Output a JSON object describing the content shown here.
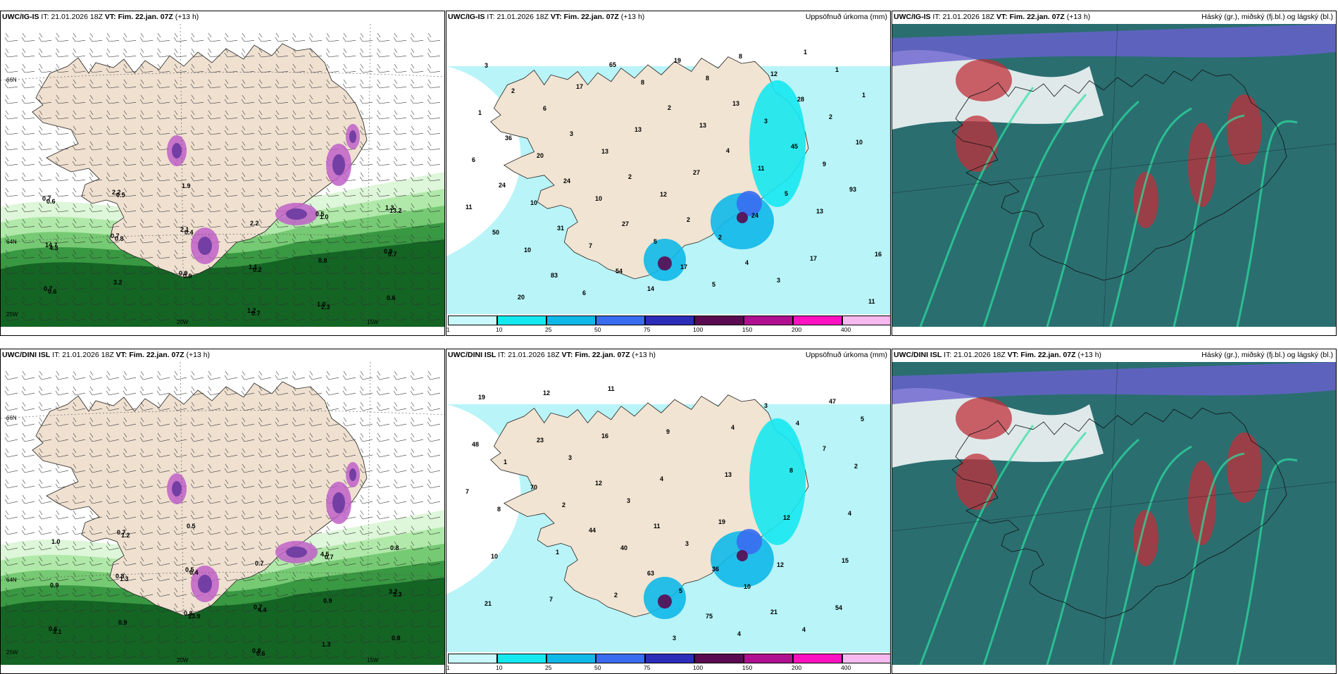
{
  "rows": [
    {
      "wind": {
        "model": "UWC/IG-IS",
        "it_label": "IT:",
        "it": "21.01.2026 18Z",
        "vt_label": "VT:",
        "vt": "Fim. 22.jan. 07Z",
        "lead": "(+13 h)"
      },
      "precip": {
        "model": "UWC/IG-IS",
        "it_label": "IT:",
        "it": "21.01.2026 18Z",
        "vt_label": "VT:",
        "vt": "Fim. 22.jan. 07Z",
        "lead": "(+13 h)",
        "right": "Uppsöfnuð úrkoma (mm)"
      },
      "cloud": {
        "model": "UWC/IG-IS",
        "it_label": "IT:",
        "it": "21.01.2026 18Z",
        "vt_label": "VT:",
        "vt": "Fim. 22.jan. 07Z",
        "lead": "(+13 h)",
        "right": "Háský (gr.), miðský (fj.bl.) og lágský (bl.)"
      }
    },
    {
      "wind": {
        "model": "UWC/DINI ISL",
        "it_label": "IT:",
        "it": "21.01.2026 18Z",
        "vt_label": "VT:",
        "vt": "Fim. 22.jan. 07Z",
        "lead": "(+13 h)"
      },
      "precip": {
        "model": "UWC/DINI ISL",
        "it_label": "IT:",
        "it": "21.01.2026 18Z",
        "vt_label": "VT:",
        "vt": "Fim. 22.jan. 07Z",
        "lead": "(+13 h)",
        "right": "Uppsöfnuð úrkoma (mm)"
      },
      "cloud": {
        "model": "UWC/DINI ISL",
        "it_label": "IT:",
        "it": "21.01.2026 18Z",
        "vt_label": "VT:",
        "vt": "Fim. 22.jan. 07Z",
        "lead": "(+13 h)",
        "right": "Háský (gr.), miðský (fj.bl.) og lágský (bl.)"
      }
    }
  ],
  "axis_labels": {
    "lat_66": "66N",
    "lat_64": "64N",
    "lon_25": "25W",
    "lon_20": "20W",
    "lon_15": "15W"
  },
  "colorbar": {
    "ticks": [
      "1",
      "10",
      "25",
      "50",
      "75",
      "100",
      "150",
      "200",
      "400"
    ],
    "colors": [
      "#c8f8fc",
      "#16e8f0",
      "#10b8e8",
      "#3a6cf0",
      "#2c2cb8",
      "#5a0a50",
      "#b01090",
      "#ff10c0",
      "#f8b8f0"
    ]
  },
  "precip_labels": {
    "top": [
      "3",
      "6",
      "13",
      "12",
      "2",
      "3",
      "1",
      "1",
      "20",
      "10",
      "5",
      "5",
      "12",
      "2",
      "6",
      "10",
      "7",
      "14",
      "8",
      "3",
      "9",
      "11",
      "10",
      "6",
      "8",
      "13",
      "11",
      "13",
      "16",
      "20",
      "17",
      "13",
      "27",
      "24",
      "17",
      "11",
      "2",
      "3",
      "2",
      "2",
      "4",
      "1",
      "1",
      "36",
      "24",
      "27",
      "17",
      "8",
      "28",
      "10",
      "24",
      "31",
      "54",
      "19",
      "13",
      "45",
      "93",
      "50",
      "83",
      "65",
      "2",
      "4",
      "5"
    ],
    "bottom": [
      "3",
      "3",
      "3",
      "10",
      "4",
      "5",
      "1",
      "2",
      "40",
      "5",
      "4",
      "4",
      "2",
      "8",
      "1",
      "2",
      "3",
      "4",
      "8",
      "4",
      "10",
      "7",
      "11",
      "9",
      "13",
      "12",
      "15",
      "21",
      "12",
      "16",
      "4",
      "19",
      "12",
      "54",
      "19",
      "23",
      "12",
      "11",
      "36",
      "21",
      "47",
      "48",
      "70",
      "44",
      "63",
      "75",
      "3",
      "7",
      "7"
    ]
  },
  "wind_labels": {
    "top": [
      "0.7",
      "0.7",
      "0.9",
      "1.2",
      "0.5",
      "0.9",
      "0.7",
      "2.2",
      "2.1",
      "1.1",
      "1.0",
      "1.3",
      "14.7",
      "3.2",
      "1.9",
      "2.2",
      "0.8",
      "0.6",
      "0.6",
      "0.8",
      "0.9",
      "0.7",
      "1.0",
      "0.7",
      "0.6",
      "0.5",
      "0.4",
      "0.2",
      "2.3",
      "13.2",
      "4.3"
    ],
    "bottom": [
      "0.8",
      "0.8",
      "0.8",
      "4.5",
      "3.2",
      "0.6",
      "0.7",
      "0.5",
      "0.7",
      "1.3",
      "0.8",
      "0.9",
      "0.9",
      "0.5",
      "0.7",
      "0.9",
      "0.8",
      "1.0",
      "1.3",
      "13.9",
      "0.6",
      "0.7",
      "3.3",
      "3.1",
      "1.2",
      "0.4",
      "4.4"
    ]
  }
}
